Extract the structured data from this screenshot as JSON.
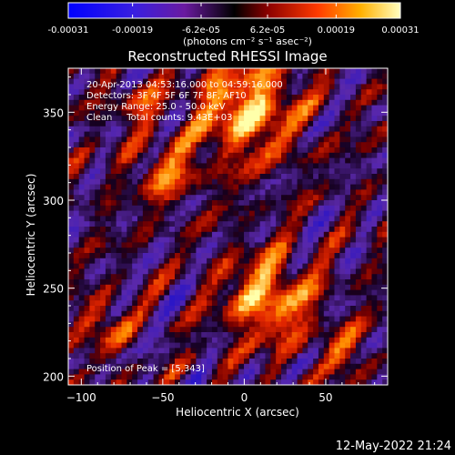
{
  "colorbar": {
    "tick_labels": [
      "-0.00031",
      "-0.00019",
      "-6.2e-05",
      "6.2e-05",
      "0.00019",
      "0.00031"
    ],
    "tick_values": [
      -0.00031,
      -0.00019,
      -6.2e-05,
      6.2e-05,
      0.00019,
      0.00031
    ],
    "range": [
      -0.00031,
      0.00031
    ],
    "units": "(photons cm⁻² s⁻¹ asec⁻²)",
    "colors": [
      "#0000ff",
      "#5a1fd0",
      "#000000",
      "#c01010",
      "#ff7000",
      "#ffffa0"
    ]
  },
  "chart_data": {
    "type": "heatmap",
    "title": "Reconstructed RHESSI Image",
    "xlabel": "Heliocentric X (arcsec)",
    "ylabel": "Heliocentric Y (arcsec)",
    "xlim": [
      -108,
      88
    ],
    "ylim": [
      195,
      375
    ],
    "xticks": [
      -100,
      -50,
      0,
      50
    ],
    "yticks": [
      200,
      250,
      300,
      350
    ],
    "xtick_labels": [
      "−100",
      "−50",
      "0",
      "50"
    ],
    "ytick_labels": [
      "200",
      "250",
      "300",
      "350"
    ],
    "annotations": [
      "20-Apr-2013 04:53:16.000 to 04:59:16.000",
      "Detectors: 3F 4F 5F 6F 7F 8F, AF10",
      "Energy Range: 25.0 - 50.0 keV",
      "Clean     Total counts: 9.43E+03"
    ],
    "peak_label": "Position of Peak = [5,343]",
    "peak": [
      5,
      343
    ]
  },
  "footer": {
    "timestamp": "12-May-2022 21:24"
  }
}
